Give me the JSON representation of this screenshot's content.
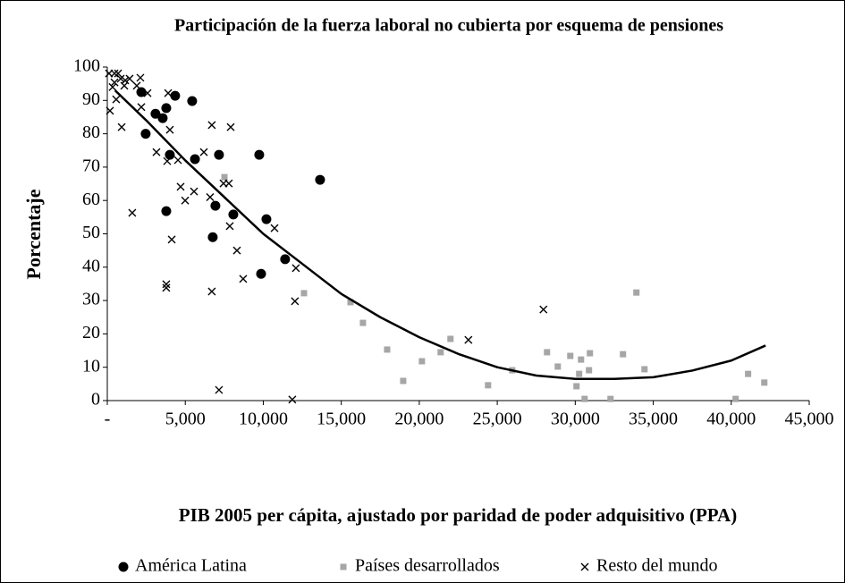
{
  "chart_data": {
    "type": "scatter",
    "title": "Participación de la fuerza laboral no cubierta por esquema de pensiones",
    "x_label": "PIB 2005 per cápita, ajustado por paridad de poder adquisitivo (PPA)",
    "y_label": "Porcentaje",
    "xlim": [
      0,
      45000
    ],
    "xticks": [
      {
        "value": 0,
        "label": "-"
      },
      {
        "value": 5000,
        "label": "5,000"
      },
      {
        "value": 10000,
        "label": "10,000"
      },
      {
        "value": 15000,
        "label": "15,000"
      },
      {
        "value": 20000,
        "label": "20,000"
      },
      {
        "value": 25000,
        "label": "25,000"
      },
      {
        "value": 30000,
        "label": "30,000"
      },
      {
        "value": 35000,
        "label": "35,000"
      },
      {
        "value": 40000,
        "label": "40,000"
      },
      {
        "value": 45000,
        "label": "45,000"
      }
    ],
    "ylim": [
      0,
      100
    ],
    "yticks": [
      0,
      10,
      20,
      30,
      40,
      50,
      60,
      70,
      80,
      90,
      100
    ],
    "grid": false,
    "legend": "bottom",
    "series": [
      {
        "name": "América Latina",
        "color": "#000000",
        "marker": "circle",
        "x": [
          2180,
          2460,
          3090,
          3550,
          3780,
          4350,
          5440,
          4010,
          5620,
          7160,
          9740,
          13640,
          3780,
          6930,
          8080,
          6760,
          10200,
          9860,
          11400
        ],
        "values": [
          92.5,
          80,
          86,
          84.7,
          87.7,
          91.4,
          89.8,
          73.7,
          72.4,
          73.7,
          73.7,
          66.2,
          56.8,
          58.4,
          55.8,
          49,
          54.4,
          38,
          42.4
        ]
      },
      {
        "name": "Países desarrollados",
        "color": "#a6a6a6",
        "marker": "square",
        "x": [
          7510,
          12610,
          15590,
          16390,
          17940,
          18970,
          20170,
          21370,
          22000,
          24410,
          25960,
          28190,
          28880,
          29680,
          30080,
          30250,
          30370,
          30600,
          30880,
          30940,
          32260,
          33060,
          33920,
          34440,
          40280,
          41080,
          42120
        ],
        "values": [
          67,
          32.2,
          29.5,
          23.3,
          15.3,
          5.9,
          11.8,
          14.5,
          18.5,
          4.6,
          9.1,
          14.5,
          10.2,
          13.4,
          4.3,
          8,
          12.3,
          0.5,
          9.1,
          14.2,
          0.5,
          13.9,
          32.4,
          9.4,
          0.5,
          8,
          5.4
        ]
      },
      {
        "name": "Resto del mundo",
        "color": "#000000",
        "marker": "cross",
        "x": [
          110,
          460,
          690,
          860,
          1150,
          460,
          340,
          170,
          570,
          1090,
          1430,
          2120,
          1890,
          2580,
          2180,
          920,
          1600,
          3150,
          3840,
          4010,
          3900,
          4530,
          6190,
          6700,
          7910,
          4700,
          4990,
          5560,
          6590,
          7450,
          7790,
          7850,
          8310,
          8710,
          10720,
          4130,
          3780,
          3780,
          6700,
          7160,
          12090,
          12030,
          11860,
          23150,
          27960
        ],
        "values": [
          98.1,
          98.1,
          98.1,
          96.5,
          96,
          95.4,
          94,
          86.9,
          90.3,
          94.4,
          96.5,
          96.8,
          94.4,
          92.2,
          88,
          82,
          56.3,
          74.5,
          71.8,
          81.2,
          92.2,
          72.1,
          74.5,
          82.6,
          82,
          64.1,
          60,
          62.7,
          61,
          65.1,
          65.1,
          52.3,
          45,
          36.5,
          51.7,
          48.3,
          34.9,
          33.8,
          32.7,
          3.2,
          39.7,
          29.8,
          0.3,
          18.2,
          27.3
        ]
      }
    ],
    "trendline": {
      "color": "#000000",
      "x": [
        500,
        2500,
        5000,
        7500,
        10000,
        12500,
        15000,
        17500,
        20000,
        22500,
        25000,
        27500,
        30000,
        32500,
        35000,
        37500,
        40000,
        42200
      ],
      "values": [
        93,
        84,
        72,
        61,
        50,
        41,
        32,
        25,
        19,
        14,
        10,
        7.5,
        6.5,
        6.5,
        7,
        9,
        12,
        16.5
      ]
    }
  }
}
